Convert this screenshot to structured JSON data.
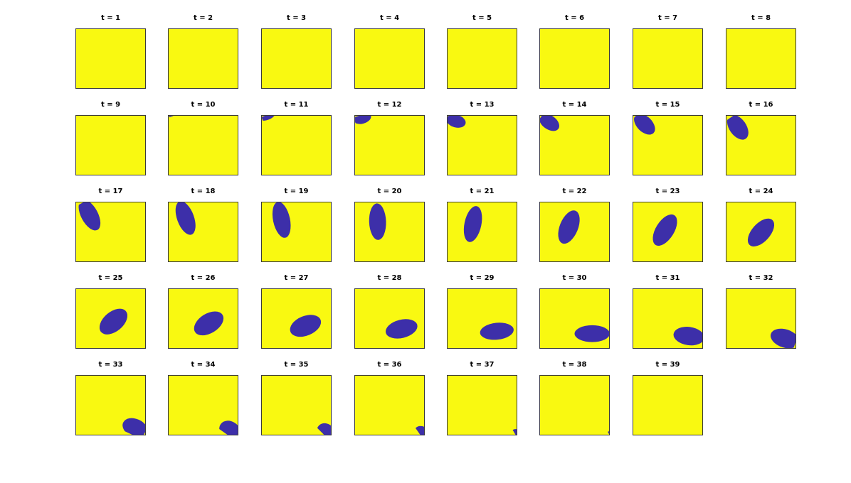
{
  "colors": {
    "background": "#f9f911",
    "blob": "#3d2fa9",
    "frame": "#3a3a3a"
  },
  "chart_data": {
    "type": "image-grid",
    "description_of_frames": "ellipse moving across a yellow field",
    "frames": [
      {
        "label": "t = 1",
        "blob": null
      },
      {
        "label": "t = 2",
        "blob": null
      },
      {
        "label": "t = 3",
        "blob": null
      },
      {
        "label": "t = 4",
        "blob": null
      },
      {
        "label": "t = 5",
        "blob": null
      },
      {
        "label": "t = 6",
        "blob": null
      },
      {
        "label": "t = 7",
        "blob": null
      },
      {
        "label": "t = 8",
        "blob": null
      },
      {
        "label": "t = 9",
        "blob": null
      },
      {
        "label": "t = 10",
        "blob": {
          "cx": 0.03,
          "cy": -0.04,
          "rx": 0.13,
          "ry": 0.06,
          "angle": -20
        }
      },
      {
        "label": "t = 11",
        "blob": {
          "cx": 0.08,
          "cy": 0.0,
          "rx": 0.13,
          "ry": 0.07,
          "angle": -20
        }
      },
      {
        "label": "t = 12",
        "blob": {
          "cx": 0.11,
          "cy": 0.05,
          "rx": 0.13,
          "ry": 0.08,
          "angle": -15
        }
      },
      {
        "label": "t = 13",
        "blob": {
          "cx": 0.13,
          "cy": 0.1,
          "rx": 0.14,
          "ry": 0.09,
          "angle": 15
        }
      },
      {
        "label": "t = 14",
        "blob": {
          "cx": 0.14,
          "cy": 0.12,
          "rx": 0.16,
          "ry": 0.1,
          "angle": 35
        }
      },
      {
        "label": "t = 15",
        "blob": {
          "cx": 0.17,
          "cy": 0.15,
          "rx": 0.18,
          "ry": 0.11,
          "angle": 45
        }
      },
      {
        "label": "t = 16",
        "blob": {
          "cx": 0.17,
          "cy": 0.2,
          "rx": 0.2,
          "ry": 0.12,
          "angle": 55
        }
      },
      {
        "label": "t = 17",
        "blob": {
          "cx": 0.2,
          "cy": 0.22,
          "rx": 0.24,
          "ry": 0.12,
          "angle": 62
        }
      },
      {
        "label": "t = 18",
        "blob": {
          "cx": 0.25,
          "cy": 0.27,
          "rx": 0.25,
          "ry": 0.12,
          "angle": 70
        }
      },
      {
        "label": "t = 19",
        "blob": {
          "cx": 0.29,
          "cy": 0.3,
          "rx": 0.26,
          "ry": 0.12,
          "angle": 78
        }
      },
      {
        "label": "t = 20",
        "blob": {
          "cx": 0.33,
          "cy": 0.33,
          "rx": 0.26,
          "ry": 0.12,
          "angle": 88
        }
      },
      {
        "label": "t = 21",
        "blob": {
          "cx": 0.37,
          "cy": 0.37,
          "rx": 0.26,
          "ry": 0.12,
          "angle": -78
        }
      },
      {
        "label": "t = 22",
        "blob": {
          "cx": 0.42,
          "cy": 0.42,
          "rx": 0.25,
          "ry": 0.13,
          "angle": -68
        }
      },
      {
        "label": "t = 23",
        "blob": {
          "cx": 0.46,
          "cy": 0.47,
          "rx": 0.25,
          "ry": 0.13,
          "angle": -58
        }
      },
      {
        "label": "t = 24",
        "blob": {
          "cx": 0.5,
          "cy": 0.51,
          "rx": 0.24,
          "ry": 0.13,
          "angle": -48
        }
      },
      {
        "label": "t = 25",
        "blob": {
          "cx": 0.54,
          "cy": 0.55,
          "rx": 0.23,
          "ry": 0.14,
          "angle": -40
        }
      },
      {
        "label": "t = 26",
        "blob": {
          "cx": 0.58,
          "cy": 0.58,
          "rx": 0.23,
          "ry": 0.14,
          "angle": -32
        }
      },
      {
        "label": "t = 27",
        "blob": {
          "cx": 0.63,
          "cy": 0.62,
          "rx": 0.23,
          "ry": 0.14,
          "angle": -22
        }
      },
      {
        "label": "t = 28",
        "blob": {
          "cx": 0.67,
          "cy": 0.67,
          "rx": 0.23,
          "ry": 0.13,
          "angle": -14
        }
      },
      {
        "label": "t = 29",
        "blob": {
          "cx": 0.71,
          "cy": 0.71,
          "rx": 0.24,
          "ry": 0.12,
          "angle": -6
        }
      },
      {
        "label": "t = 30",
        "blob": {
          "cx": 0.75,
          "cy": 0.75,
          "rx": 0.25,
          "ry": 0.12,
          "angle": 0
        }
      },
      {
        "label": "t = 31",
        "blob": {
          "cx": 0.8,
          "cy": 0.79,
          "rx": 0.22,
          "ry": 0.13,
          "angle": 8
        }
      },
      {
        "label": "t = 32",
        "blob": {
          "cx": 0.84,
          "cy": 0.83,
          "rx": 0.21,
          "ry": 0.13,
          "angle": 18
        }
      },
      {
        "label": "t = 33",
        "blob": {
          "cx": 0.85,
          "cy": 0.88,
          "rx": 0.19,
          "ry": 0.13,
          "angle": 25
        }
      },
      {
        "label": "t = 34",
        "blob": {
          "cx": 0.88,
          "cy": 0.92,
          "rx": 0.16,
          "ry": 0.13,
          "angle": 35
        }
      },
      {
        "label": "t = 35",
        "blob": {
          "cx": 0.92,
          "cy": 0.95,
          "rx": 0.14,
          "ry": 0.12,
          "angle": 45
        }
      },
      {
        "label": "t = 36",
        "blob": {
          "cx": 0.95,
          "cy": 0.98,
          "rx": 0.12,
          "ry": 0.11,
          "angle": 55
        }
      },
      {
        "label": "t = 37",
        "blob": {
          "cx": 0.98,
          "cy": 1.0,
          "rx": 0.09,
          "ry": 0.09,
          "angle": 60
        }
      },
      {
        "label": "t = 38",
        "blob": {
          "cx": 1.0,
          "cy": 1.0,
          "rx": 0.06,
          "ry": 0.07,
          "angle": 60
        }
      },
      {
        "label": "t = 39",
        "blob": null
      }
    ]
  }
}
